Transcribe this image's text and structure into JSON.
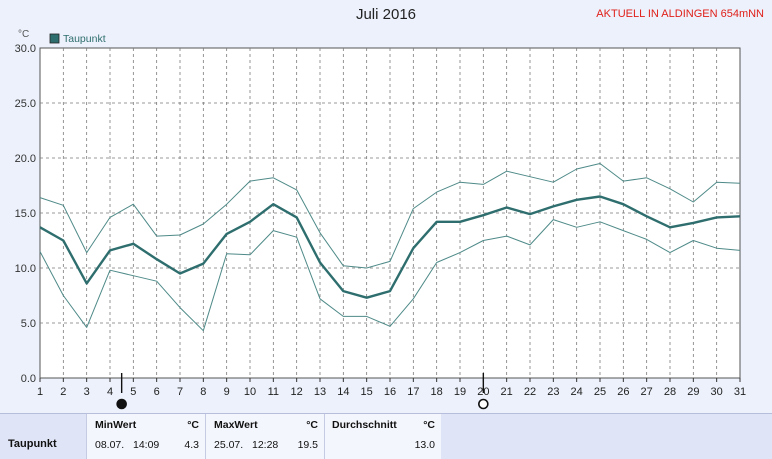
{
  "chart_data": {
    "type": "line",
    "title": "Juli 2016",
    "station": "AKTUELL IN ALDINGEN 654mNN",
    "ylabel": "°C",
    "ylim": [
      0,
      30
    ],
    "yticks": [
      "0.0",
      "5.0",
      "10.0",
      "15.0",
      "20.0",
      "25.0",
      "30.0"
    ],
    "x": [
      1,
      2,
      3,
      4,
      5,
      6,
      7,
      8,
      9,
      10,
      11,
      12,
      13,
      14,
      15,
      16,
      17,
      18,
      19,
      20,
      21,
      22,
      23,
      24,
      25,
      26,
      27,
      28,
      29,
      30,
      31
    ],
    "legend": "Taupunkt",
    "legend_position": "top-left",
    "grid": true,
    "series": [
      {
        "name": "Taupunkt",
        "role": "mean",
        "color": "#2f6e6e",
        "values": [
          13.7,
          12.5,
          8.6,
          11.6,
          12.2,
          10.8,
          9.5,
          10.4,
          13.1,
          14.2,
          15.8,
          14.6,
          10.5,
          7.9,
          7.3,
          7.9,
          11.8,
          14.2,
          14.2,
          14.8,
          15.5,
          14.9,
          15.6,
          16.2,
          16.5,
          15.8,
          14.7,
          13.7,
          14.1,
          14.6,
          14.7
        ]
      },
      {
        "role": "max",
        "color": "#4e8a88",
        "values": [
          16.4,
          15.7,
          11.4,
          14.6,
          15.8,
          12.9,
          13.0,
          14.0,
          15.8,
          17.9,
          18.2,
          17.1,
          13.2,
          10.2,
          10.0,
          10.6,
          15.4,
          16.9,
          17.8,
          17.6,
          18.8,
          18.3,
          17.8,
          19.0,
          19.5,
          17.9,
          18.2,
          17.2,
          16.0,
          17.8,
          17.7
        ]
      },
      {
        "role": "min",
        "color": "#4e8a88",
        "values": [
          11.5,
          7.5,
          4.6,
          9.8,
          9.3,
          8.8,
          6.4,
          4.3,
          11.3,
          11.2,
          13.4,
          12.8,
          7.2,
          5.6,
          5.6,
          4.7,
          7.2,
          10.5,
          11.4,
          12.5,
          12.9,
          12.1,
          14.4,
          13.7,
          14.2,
          13.4,
          12.6,
          11.4,
          12.5,
          11.8,
          11.6
        ]
      }
    ],
    "moon_phases": [
      {
        "day": 4.5,
        "phase": "new"
      },
      {
        "day": 20,
        "phase": "full"
      }
    ]
  },
  "stats": {
    "row_label": "Taupunkt",
    "min": {
      "header": "MinWert",
      "unit": "°C",
      "date": "08.07.",
      "time": "14:09",
      "value": "4.3"
    },
    "max": {
      "header": "MaxWert",
      "unit": "°C",
      "date": "25.07.",
      "time": "12:28",
      "value": "19.5"
    },
    "avg": {
      "header": "Durchschnitt",
      "unit": "°C",
      "value": "13.0"
    }
  }
}
